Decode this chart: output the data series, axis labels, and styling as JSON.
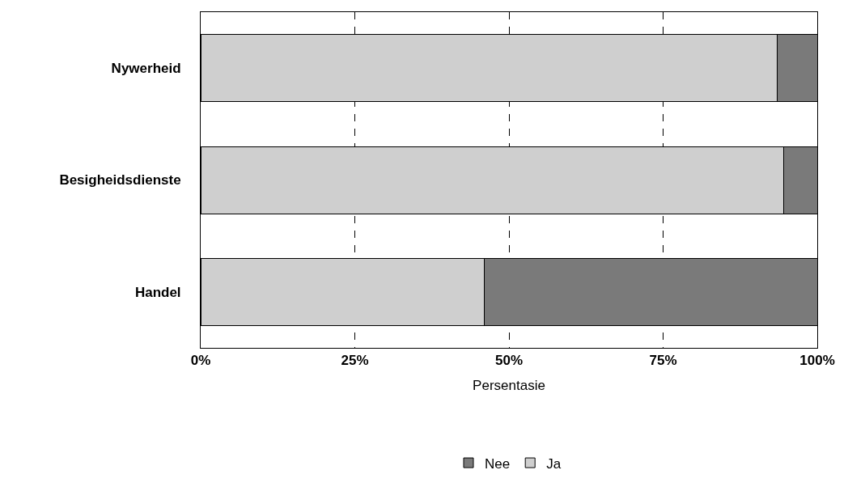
{
  "chart_data": {
    "type": "bar",
    "orientation": "horizontal",
    "stacked": true,
    "categories": [
      "Nywerheid",
      "Besigheidsdienste",
      "Handel"
    ],
    "series": [
      {
        "name": "Ja",
        "color": "#cfcfcf",
        "values": [
          93.5,
          94.5,
          46
        ]
      },
      {
        "name": "Nee",
        "color": "#7a7a7a",
        "values": [
          6.5,
          5.5,
          54
        ]
      }
    ],
    "xlabel": "Persentasie",
    "xlim": [
      0,
      100
    ],
    "xticks": [
      {
        "value": 0,
        "label": "0%"
      },
      {
        "value": 25,
        "label": "25%"
      },
      {
        "value": 50,
        "label": "50%"
      },
      {
        "value": 75,
        "label": "75%"
      },
      {
        "value": 100,
        "label": "100%"
      }
    ],
    "grid": "x",
    "legend": "bottom"
  }
}
